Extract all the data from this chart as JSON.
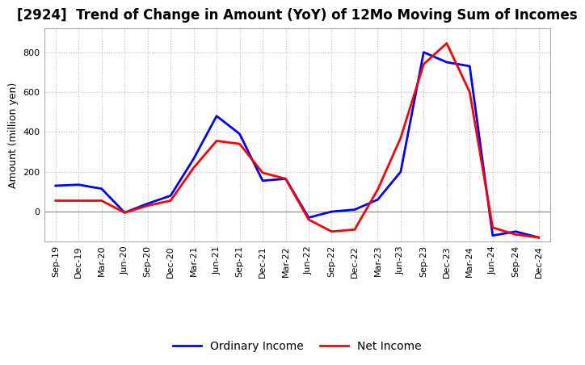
{
  "title": "[2924]  Trend of Change in Amount (YoY) of 12Mo Moving Sum of Incomes",
  "ylabel": "Amount (million yen)",
  "x_labels": [
    "Sep-19",
    "Dec-19",
    "Mar-20",
    "Jun-20",
    "Sep-20",
    "Dec-20",
    "Mar-21",
    "Jun-21",
    "Sep-21",
    "Dec-21",
    "Mar-22",
    "Jun-22",
    "Sep-22",
    "Dec-22",
    "Mar-23",
    "Jun-23",
    "Sep-23",
    "Dec-23",
    "Mar-24",
    "Jun-24",
    "Sep-24",
    "Dec-24"
  ],
  "ordinary_income": [
    130,
    135,
    115,
    -5,
    40,
    80,
    265,
    480,
    390,
    155,
    165,
    -30,
    0,
    10,
    60,
    200,
    800,
    750,
    730,
    -120,
    -100,
    -130
  ],
  "net_income": [
    55,
    55,
    55,
    -5,
    30,
    55,
    220,
    355,
    340,
    195,
    165,
    -40,
    -100,
    -90,
    110,
    370,
    740,
    845,
    600,
    -80,
    -115,
    -130
  ],
  "ordinary_income_color": "#0000ff",
  "net_income_color": "#ff0000",
  "ylim_min": -150,
  "ylim_max": 920,
  "yticks": [
    0,
    200,
    400,
    600,
    800
  ],
  "background_color": "#ffffff",
  "grid_color": "#bbbbbb",
  "line_width": 2.0,
  "legend_ordinary": "Ordinary Income",
  "legend_net": "Net Income",
  "figwidth": 7.2,
  "figheight": 4.4,
  "title_fontsize": 12,
  "ylabel_fontsize": 9,
  "tick_fontsize": 8,
  "legend_fontsize": 10
}
